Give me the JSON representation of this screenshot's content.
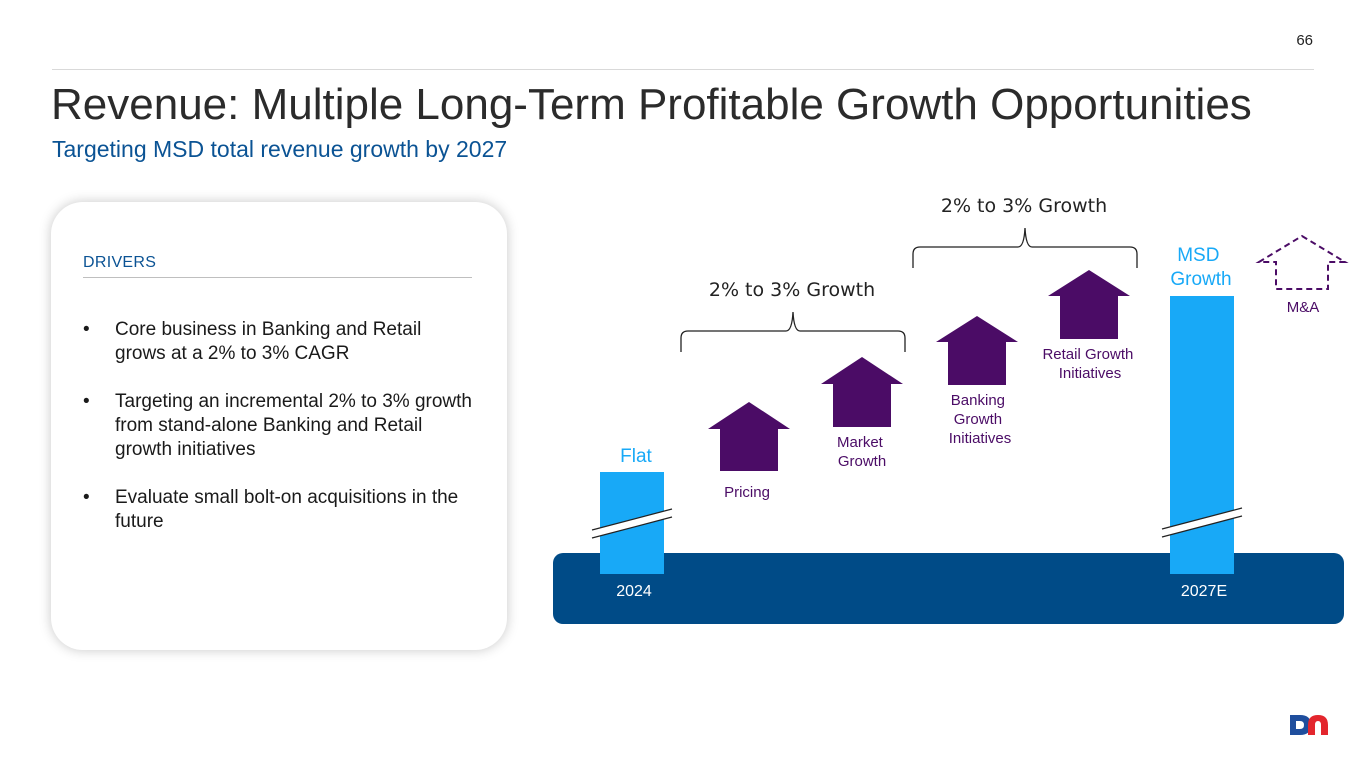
{
  "page_number": "66",
  "title": "Revenue: Multiple Long-Term Profitable Growth Opportunities",
  "subtitle": "Targeting MSD total revenue growth by 2027",
  "drivers": {
    "heading": "DRIVERS",
    "bullets": [
      "Core business in Banking and Retail grows at a 2% to 3% CAGR",
      "Targeting an incremental 2% to 3% growth from stand-alone Banking and Retail growth initiatives",
      "Evaluate small bolt-on acquisitions in the future"
    ]
  },
  "chart_data": {
    "type": "bar",
    "categories": [
      "2024",
      "2027E"
    ],
    "bar_labels": [
      "Flat",
      "MSD Growth"
    ],
    "steps": [
      {
        "name": "Pricing",
        "lines": [
          "Pricing"
        ]
      },
      {
        "name": "Market Growth",
        "lines": [
          "Market",
          "Growth"
        ]
      },
      {
        "name": "Banking Growth Initiatives",
        "lines": [
          "Banking",
          "Growth",
          "Initiatives"
        ]
      },
      {
        "name": "Retail Growth Initiatives",
        "lines": [
          "Retail Growth",
          "Initiatives"
        ]
      }
    ],
    "brackets": [
      "2% to 3% Growth",
      "2% to 3% Growth"
    ],
    "optional": "M&A"
  },
  "colors": {
    "bar": "#18a9f7",
    "arrow": "#4b0c66",
    "base": "#004b87",
    "title": "#2b2b2b",
    "accent": "#0b5394"
  },
  "logo": {
    "name": "company-logo",
    "text": "DN"
  }
}
